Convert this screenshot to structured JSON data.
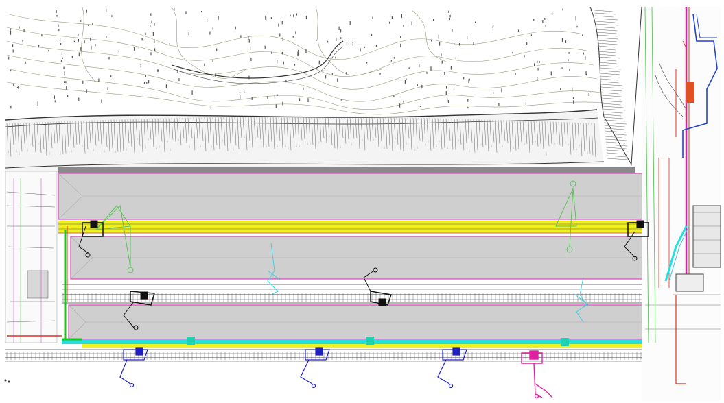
{
  "colors": {
    "background": "#ffffff",
    "topo_line": "#8a8a70",
    "topo_dark": "#333333",
    "stockpile_fill": "#cfcfcf",
    "stockpile_border": "#e040c0",
    "rail_yellow": "#f0f020",
    "rail_cyan": "#20e0e0",
    "rail_green": "#20c020",
    "track_dark": "#444444",
    "stacker_black": "#111111",
    "reclaimer_blue": "#2020c0",
    "reclaimer_cyan": "#40d0e0",
    "boom_green": "#60c060",
    "conveyor_magenta": "#e020a0",
    "conveyor_blue": "#2040d0",
    "red_line": "#e03020",
    "orange": "#f08020"
  },
  "icons": [
    "stacker-reclaimer-icon",
    "bucket-wheel-icon"
  ]
}
